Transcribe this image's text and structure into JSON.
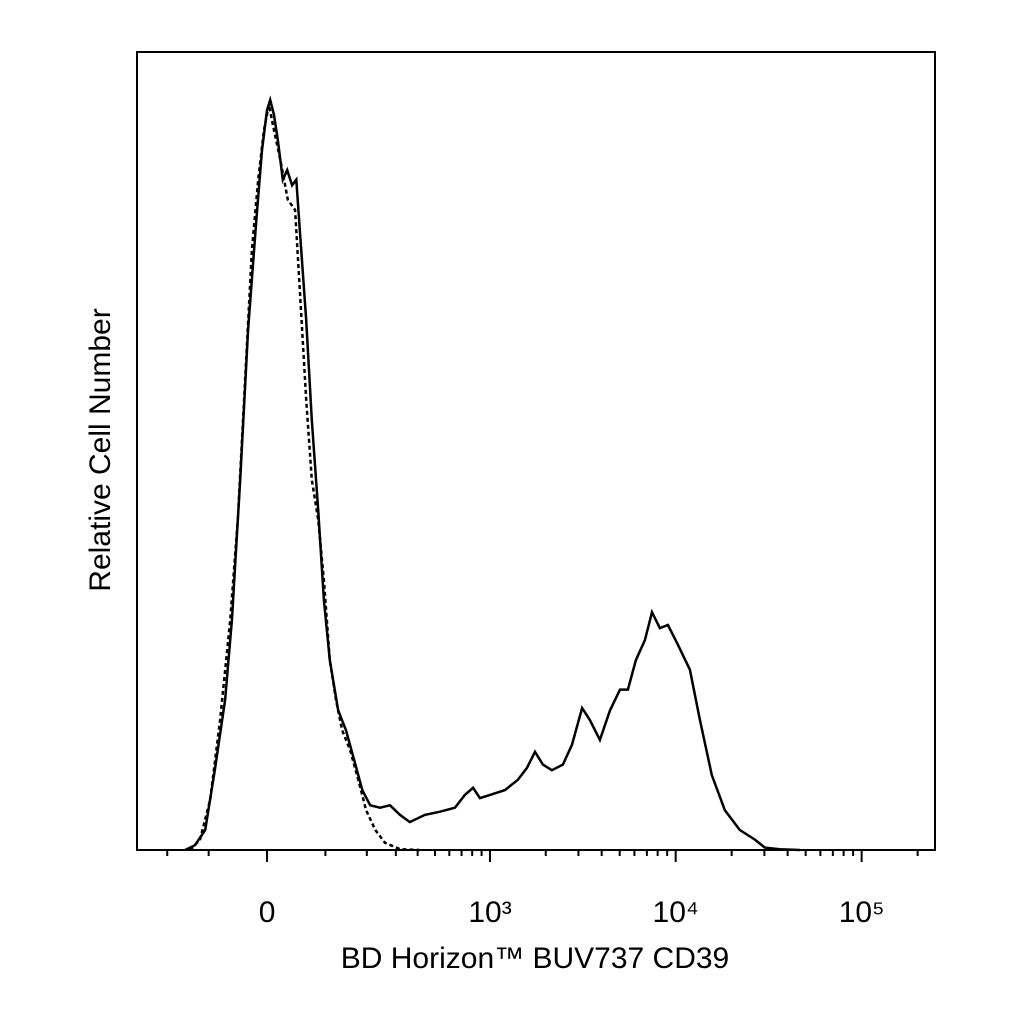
{
  "chart_data": {
    "type": "line",
    "xlabel": "BD Horizon™ BUV737 CD39",
    "ylabel": "Relative Cell Number",
    "xscale": "arcsinh",
    "xscale_cofactor": 127,
    "xlim": [
      -305,
      248000
    ],
    "ylim": [
      0,
      100
    ],
    "xticks": [
      0,
      {
        "value": 1000,
        "label": "10³"
      },
      {
        "value": 10000,
        "label": "10⁴"
      },
      {
        "value": 100000,
        "label": "10⁵"
      }
    ],
    "xminor_ticks": [
      -200,
      -100,
      100,
      200,
      300,
      400,
      500,
      600,
      700,
      800,
      900,
      2000,
      3000,
      4000,
      5000,
      6000,
      7000,
      8000,
      9000,
      20000,
      30000,
      40000,
      50000,
      60000,
      70000,
      80000,
      90000,
      200000
    ],
    "series": [
      {
        "color": "#000000",
        "line_style": "solid",
        "x": [
          -152,
          -129,
          -107,
          -88,
          -69,
          -57,
          -43,
          -30,
          -17,
          -8,
          0,
          5,
          11,
          17,
          25,
          32,
          40,
          47,
          53,
          64,
          74,
          86,
          97,
          109,
          127,
          145,
          165,
          187,
          210,
          242,
          277,
          317,
          361,
          439,
          533,
          645,
          730,
          809,
          881,
          1000,
          1204,
          1416,
          1584,
          1749,
          1930,
          2158,
          2474,
          2768,
          3137,
          3454,
          3912,
          4432,
          5017,
          5537,
          6109,
          6833,
          7455,
          8230,
          9081,
          10287,
          11925,
          13500,
          15646,
          18364,
          22123,
          26657,
          30150,
          36297,
          46520
        ],
        "values": [
          0,
          0.6,
          2.5,
          10,
          18.8,
          28.8,
          46.4,
          65.2,
          78.9,
          87.7,
          92.7,
          94,
          92.1,
          89,
          84,
          85.2,
          83.3,
          84,
          77.7,
          66.4,
          53.9,
          42.6,
          31.3,
          23.8,
          17.5,
          15,
          11.3,
          7.5,
          5.6,
          5.3,
          5.6,
          4.4,
          3.5,
          4.4,
          4.8,
          5.3,
          6.9,
          7.8,
          6.5,
          6.9,
          7.5,
          8.8,
          10.3,
          12.3,
          10.7,
          10,
          10.7,
          13.2,
          17.8,
          16.3,
          13.8,
          17.5,
          20.1,
          20.1,
          23.8,
          26.3,
          29.8,
          27.8,
          28.2,
          25.7,
          22.6,
          16.3,
          9.4,
          5,
          2.5,
          1.3,
          0.3,
          0.1,
          0
        ]
      },
      {
        "color": "#000000",
        "line_style": "dotted",
        "x": [
          -140,
          -118,
          -97,
          -78,
          -60,
          -47,
          -35,
          -24,
          -14,
          -5,
          3,
          11,
          21,
          33,
          45,
          53,
          64,
          74,
          86,
          97,
          109,
          122,
          136,
          155,
          176,
          198,
          226,
          259,
          317,
          411
        ],
        "values": [
          0,
          1.3,
          6.3,
          16.3,
          28.8,
          41.4,
          58.9,
          75.2,
          84,
          90.2,
          93.4,
          90.2,
          86.5,
          81.5,
          80.2,
          70.2,
          56.4,
          46.4,
          41.4,
          33.8,
          23.8,
          18.8,
          15,
          12.5,
          8.8,
          5,
          2.5,
          0.9,
          0.1,
          0
        ]
      }
    ]
  }
}
